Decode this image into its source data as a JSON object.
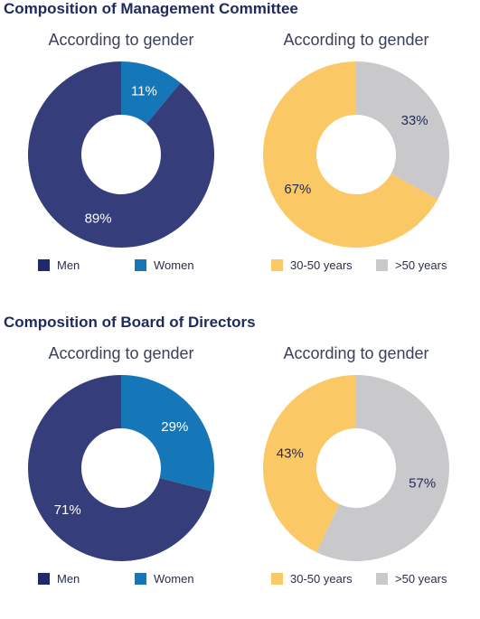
{
  "sections": [
    {
      "title": "Composition of Management Committee"
    },
    {
      "title": "Composition of Board of Directors"
    }
  ],
  "chart_data": [
    {
      "type": "pie",
      "title": "According to gender",
      "categories": [
        "Men",
        "Women"
      ],
      "values": [
        89,
        11
      ],
      "labels": [
        "89%",
        "11%"
      ],
      "colors": [
        "#353d7a",
        "#1576b8"
      ],
      "legend_colors": [
        "#1e2a6a",
        "#1576b8"
      ],
      "label_colors": [
        "#ffffff",
        "#ffffff"
      ]
    },
    {
      "type": "pie",
      "title": "According to gender",
      "categories": [
        "30-50 years",
        ">50 years"
      ],
      "values": [
        67,
        33
      ],
      "labels": [
        "67%",
        "33%"
      ],
      "colors": [
        "#fac864",
        "#c9c9cb"
      ],
      "legend_colors": [
        "#fac864",
        "#c9c9cb"
      ],
      "label_colors": [
        "#1e2a5e",
        "#1e2a5e"
      ]
    },
    {
      "type": "pie",
      "title": "According to gender",
      "categories": [
        "Men",
        "Women"
      ],
      "values": [
        71,
        29
      ],
      "labels": [
        "71%",
        "29%"
      ],
      "colors": [
        "#353d7a",
        "#1576b8"
      ],
      "legend_colors": [
        "#1e2a6a",
        "#1576b8"
      ],
      "label_colors": [
        "#ffffff",
        "#ffffff"
      ]
    },
    {
      "type": "pie",
      "title": "According to gender",
      "categories": [
        "30-50 years",
        ">50 years"
      ],
      "values": [
        43,
        57
      ],
      "labels": [
        "43%",
        "57%"
      ],
      "colors": [
        "#fac864",
        "#c9c9cb"
      ],
      "legend_colors": [
        "#fac864",
        "#c9c9cb"
      ],
      "label_colors": [
        "#1e2a5e",
        "#1e2a5e"
      ]
    }
  ]
}
